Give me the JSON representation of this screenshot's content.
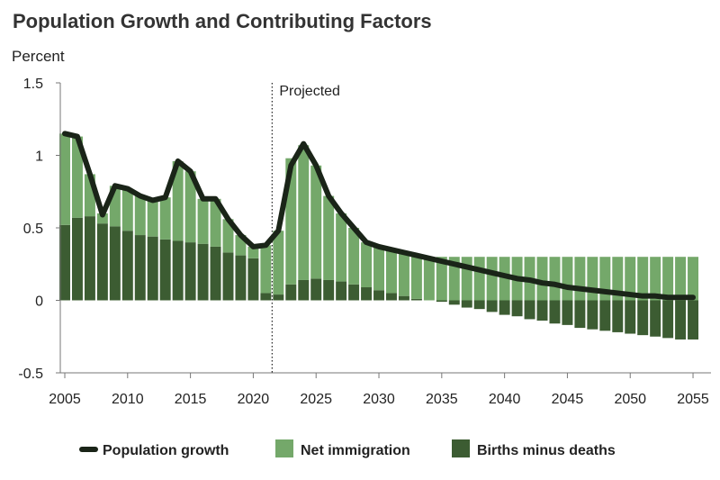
{
  "chart_data": {
    "type": "bar",
    "title": "Population Growth and Contributing Factors",
    "ylabel": "Percent",
    "xlabel": "",
    "ylim": [
      -0.5,
      1.5
    ],
    "xlim": [
      2005,
      2056
    ],
    "yticks": [
      "1.5",
      "1",
      "0.5",
      "0",
      "-0.5"
    ],
    "ytick_values": [
      1.5,
      1,
      0.5,
      0,
      -0.5
    ],
    "xticks": [
      "2005",
      "2010",
      "2015",
      "2020",
      "2025",
      "2030",
      "2035",
      "2040",
      "2045",
      "2050",
      "2055"
    ],
    "xtick_values": [
      2005,
      2010,
      2015,
      2020,
      2025,
      2030,
      2035,
      2040,
      2045,
      2050,
      2055
    ],
    "annotation": {
      "label": "Projected",
      "x": 2021.5
    },
    "years": [
      2005,
      2006,
      2007,
      2008,
      2009,
      2010,
      2011,
      2012,
      2013,
      2014,
      2015,
      2016,
      2017,
      2018,
      2019,
      2020,
      2021,
      2022,
      2023,
      2024,
      2025,
      2026,
      2027,
      2028,
      2029,
      2030,
      2031,
      2032,
      2033,
      2034,
      2035,
      2036,
      2037,
      2038,
      2039,
      2040,
      2041,
      2042,
      2043,
      2044,
      2045,
      2046,
      2047,
      2048,
      2049,
      2050,
      2051,
      2052,
      2053,
      2054,
      2055
    ],
    "series": [
      {
        "name": "Births minus deaths",
        "color": "#3c5c32",
        "values": [
          0.52,
          0.57,
          0.58,
          0.53,
          0.51,
          0.48,
          0.45,
          0.44,
          0.42,
          0.41,
          0.4,
          0.39,
          0.37,
          0.33,
          0.31,
          0.29,
          0.05,
          0.04,
          0.11,
          0.14,
          0.15,
          0.14,
          0.13,
          0.11,
          0.09,
          0.07,
          0.05,
          0.03,
          0.01,
          0.0,
          -0.01,
          -0.03,
          -0.05,
          -0.06,
          -0.08,
          -0.1,
          -0.11,
          -0.13,
          -0.14,
          -0.16,
          -0.17,
          -0.19,
          -0.2,
          -0.21,
          -0.22,
          -0.23,
          -0.24,
          -0.25,
          -0.26,
          -0.27,
          -0.27
        ]
      },
      {
        "name": "Net immigration",
        "color": "#74a86a",
        "values": [
          0.63,
          0.56,
          0.29,
          0.07,
          0.28,
          0.29,
          0.27,
          0.25,
          0.29,
          0.55,
          0.49,
          0.31,
          0.33,
          0.23,
          0.14,
          0.08,
          0.33,
          0.44,
          0.87,
          0.93,
          0.78,
          0.58,
          0.47,
          0.39,
          0.31,
          0.3,
          0.3,
          0.3,
          0.3,
          0.3,
          0.3,
          0.3,
          0.3,
          0.3,
          0.3,
          0.3,
          0.3,
          0.3,
          0.3,
          0.3,
          0.3,
          0.3,
          0.3,
          0.3,
          0.3,
          0.3,
          0.3,
          0.3,
          0.3,
          0.3,
          0.3
        ]
      },
      {
        "name": "Population growth",
        "type": "line",
        "color": "#1a2418",
        "values": [
          1.15,
          1.13,
          0.87,
          0.59,
          0.79,
          0.77,
          0.72,
          0.69,
          0.71,
          0.96,
          0.89,
          0.7,
          0.7,
          0.56,
          0.45,
          0.37,
          0.38,
          0.48,
          0.93,
          1.08,
          0.93,
          0.72,
          0.6,
          0.5,
          0.4,
          0.37,
          0.35,
          0.33,
          0.31,
          0.29,
          0.27,
          0.25,
          0.23,
          0.21,
          0.19,
          0.17,
          0.15,
          0.14,
          0.12,
          0.11,
          0.09,
          0.08,
          0.07,
          0.06,
          0.05,
          0.04,
          0.03,
          0.03,
          0.02,
          0.02,
          0.02
        ]
      }
    ],
    "legend": [
      {
        "label": "Population growth",
        "kind": "line",
        "color": "#1a2418"
      },
      {
        "label": "Net immigration",
        "kind": "box",
        "color": "#74a86a"
      },
      {
        "label": "Births minus deaths",
        "kind": "box",
        "color": "#3c5c32"
      }
    ],
    "legend_position": "bottom"
  }
}
